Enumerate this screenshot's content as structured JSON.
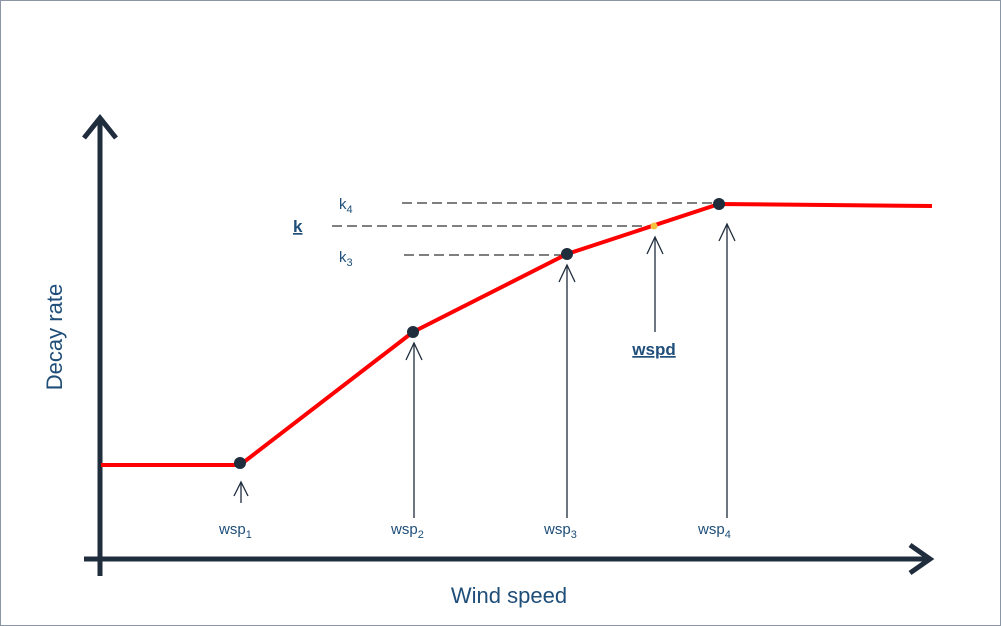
{
  "diagram": {
    "y_axis_title": "Decay rate",
    "x_axis_title": "Wind speed",
    "k_labels": [
      {
        "base": "k",
        "sub": "4"
      },
      {
        "base": "k",
        "sub": "3"
      }
    ],
    "k_interp_label": "k",
    "wspd_label": "wspd",
    "wsp_labels": [
      {
        "base": "wsp",
        "sub": "1"
      },
      {
        "base": "wsp",
        "sub": "2"
      },
      {
        "base": "wsp",
        "sub": "3"
      },
      {
        "base": "wsp",
        "sub": "4"
      }
    ],
    "colors": {
      "curve": "#ff0000",
      "axis": "#1f2d3d",
      "point": "#1f2d3d",
      "interp_point": "#f5c242",
      "label": "#1f4e79"
    }
  }
}
